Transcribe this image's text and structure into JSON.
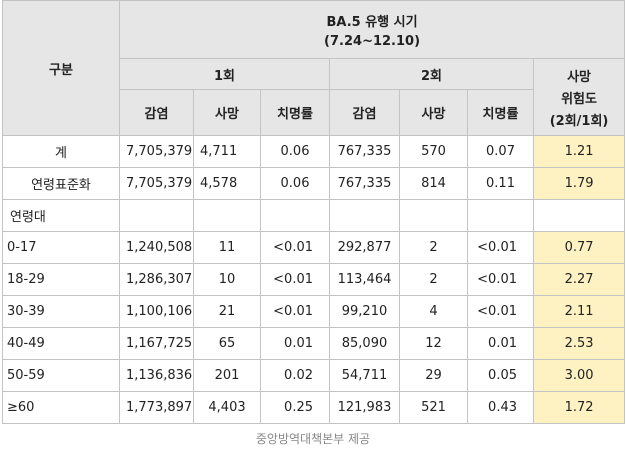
{
  "header": {
    "title_line1": "BA.5 유행 시기",
    "title_line2": "(7.24~12.10)",
    "category": "구분",
    "period1": "1회",
    "period2": "2회",
    "risk_line1": "사망",
    "risk_line2": "위험도",
    "risk_line3": "(2회/1회)",
    "col_infection": "감염",
    "col_death": "사망",
    "col_cfr": "치명률"
  },
  "rows": [
    {
      "label": "계",
      "i1": "7,705,379",
      "d1": "4,711",
      "c1": "0.06",
      "i2": "767,335",
      "d2": "570",
      "c2": "0.07",
      "risk": "1.21"
    },
    {
      "label": "연령표준화",
      "i1": "7,705,379",
      "d1": "4,578",
      "c1": "0.06",
      "i2": "767,335",
      "d2": "814",
      "c2": "0.11",
      "risk": "1.79"
    },
    {
      "label": "연령대"
    },
    {
      "label": "0-17",
      "i1": "1,240,508",
      "d1": "11",
      "c1": "<0.01",
      "i2": "292,877",
      "d2": "2",
      "c2": "<0.01",
      "risk": "0.77"
    },
    {
      "label": "18-29",
      "i1": "1,286,307",
      "d1": "10",
      "c1": "<0.01",
      "i2": "113,464",
      "d2": "2",
      "c2": "<0.01",
      "risk": "2.27"
    },
    {
      "label": "30-39",
      "i1": "1,100,106",
      "d1": "21",
      "c1": "<0.01",
      "i2": "99,210",
      "d2": "4",
      "c2": "<0.01",
      "risk": "2.11"
    },
    {
      "label": "40-49",
      "i1": "1,167,725",
      "d1": "65",
      "c1": "0.01",
      "i2": "85,090",
      "d2": "12",
      "c2": "0.01",
      "risk": "2.53"
    },
    {
      "label": "50-59",
      "i1": "1,136,836",
      "d1": "201",
      "c1": "0.02",
      "i2": "54,711",
      "d2": "29",
      "c2": "0.05",
      "risk": "3.00"
    },
    {
      "label": "≥60",
      "i1": "1,773,897",
      "d1": "4,403",
      "c1": "0.25",
      "i2": "121,983",
      "d2": "521",
      "c2": "0.43",
      "risk": "1.72"
    }
  ],
  "caption": "중앙방역대책본부 제공",
  "colors": {
    "header_bg": "#e6e6e6",
    "risk_highlight": "#fff2c2",
    "border": "#c4c4c4"
  }
}
